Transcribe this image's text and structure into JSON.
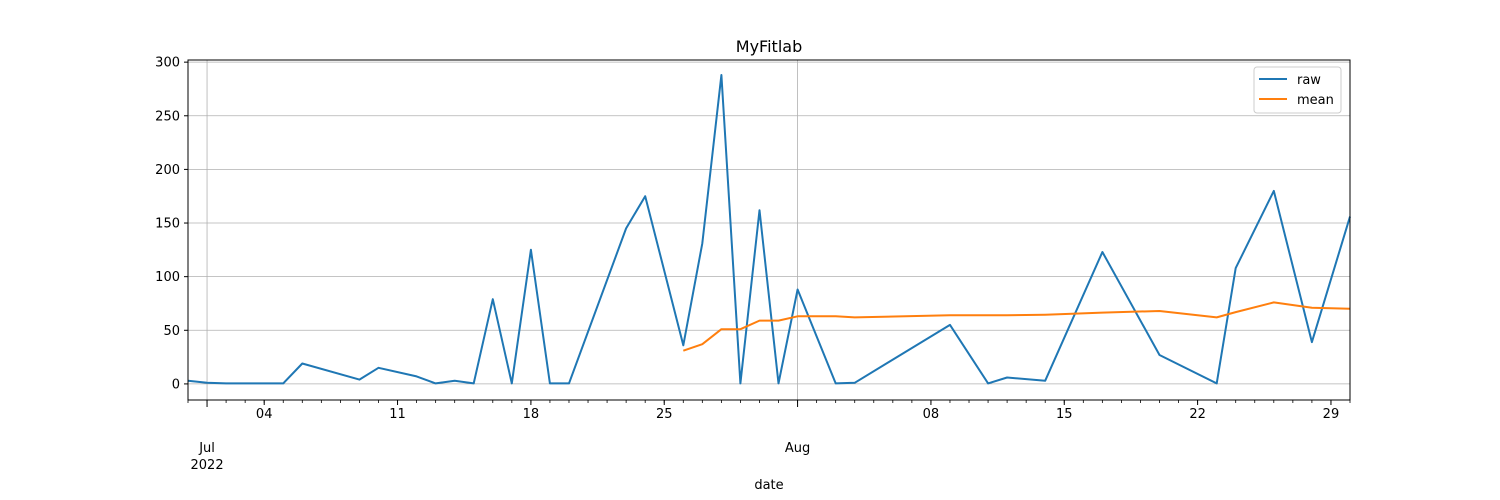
{
  "chart_data": {
    "type": "line",
    "title": "MyFitlab",
    "xlabel": "date",
    "ylabel": "",
    "ylim": [
      -15,
      302
    ],
    "xlim": [
      "2022-06-30",
      "2022-08-30"
    ],
    "grid": true,
    "legend_position": "top-right",
    "major_x_ticks": [
      {
        "date": "2022-07-01",
        "label": "Jul",
        "sublabel": "2022"
      },
      {
        "date": "2022-08-01",
        "label": "Aug",
        "sublabel": ""
      }
    ],
    "minor_x_tick_labels": [
      {
        "date": "2022-07-04",
        "label": "04"
      },
      {
        "date": "2022-07-11",
        "label": "11"
      },
      {
        "date": "2022-07-18",
        "label": "18"
      },
      {
        "date": "2022-07-25",
        "label": "25"
      },
      {
        "date": "2022-08-08",
        "label": "08"
      },
      {
        "date": "2022-08-15",
        "label": "15"
      },
      {
        "date": "2022-08-22",
        "label": "22"
      },
      {
        "date": "2022-08-29",
        "label": "29"
      }
    ],
    "y_ticks": [
      0,
      50,
      100,
      150,
      200,
      250,
      300
    ],
    "series": [
      {
        "name": "raw",
        "color": "#1f77b4",
        "points": [
          [
            "2022-06-30",
            3
          ],
          [
            "2022-07-01",
            1
          ],
          [
            "2022-07-02",
            0.5
          ],
          [
            "2022-07-05",
            0.5
          ],
          [
            "2022-07-06",
            19
          ],
          [
            "2022-07-09",
            4
          ],
          [
            "2022-07-10",
            15
          ],
          [
            "2022-07-12",
            7
          ],
          [
            "2022-07-13",
            0.5
          ],
          [
            "2022-07-14",
            3
          ],
          [
            "2022-07-15",
            0.5
          ],
          [
            "2022-07-16",
            79
          ],
          [
            "2022-07-17",
            0.5
          ],
          [
            "2022-07-18",
            125
          ],
          [
            "2022-07-19",
            0.5
          ],
          [
            "2022-07-20",
            0.5
          ],
          [
            "2022-07-23",
            145
          ],
          [
            "2022-07-24",
            175
          ],
          [
            "2022-07-26",
            36
          ],
          [
            "2022-07-27",
            131
          ],
          [
            "2022-07-28",
            288
          ],
          [
            "2022-07-29",
            0.5
          ],
          [
            "2022-07-30",
            162
          ],
          [
            "2022-07-31",
            0.5
          ],
          [
            "2022-08-01",
            88
          ],
          [
            "2022-08-03",
            0.5
          ],
          [
            "2022-08-04",
            1
          ],
          [
            "2022-08-09",
            55
          ],
          [
            "2022-08-11",
            0.5
          ],
          [
            "2022-08-12",
            6
          ],
          [
            "2022-08-14",
            3
          ],
          [
            "2022-08-17",
            123
          ],
          [
            "2022-08-20",
            27
          ],
          [
            "2022-08-23",
            0.5
          ],
          [
            "2022-08-24",
            108
          ],
          [
            "2022-08-26",
            180
          ],
          [
            "2022-08-28",
            39
          ],
          [
            "2022-08-30",
            156
          ]
        ]
      },
      {
        "name": "mean",
        "color": "#ff7f0e",
        "points": [
          [
            "2022-07-26",
            31
          ],
          [
            "2022-07-27",
            37
          ],
          [
            "2022-07-28",
            51
          ],
          [
            "2022-07-29",
            51
          ],
          [
            "2022-07-30",
            59
          ],
          [
            "2022-07-31",
            59
          ],
          [
            "2022-08-01",
            63
          ],
          [
            "2022-08-03",
            63
          ],
          [
            "2022-08-04",
            62
          ],
          [
            "2022-08-09",
            64
          ],
          [
            "2022-08-12",
            64
          ],
          [
            "2022-08-14",
            64.5
          ],
          [
            "2022-08-17",
            66.5
          ],
          [
            "2022-08-20",
            68
          ],
          [
            "2022-08-23",
            62
          ],
          [
            "2022-08-24",
            67
          ],
          [
            "2022-08-26",
            76
          ],
          [
            "2022-08-28",
            71
          ],
          [
            "2022-08-30",
            70
          ]
        ]
      }
    ]
  }
}
